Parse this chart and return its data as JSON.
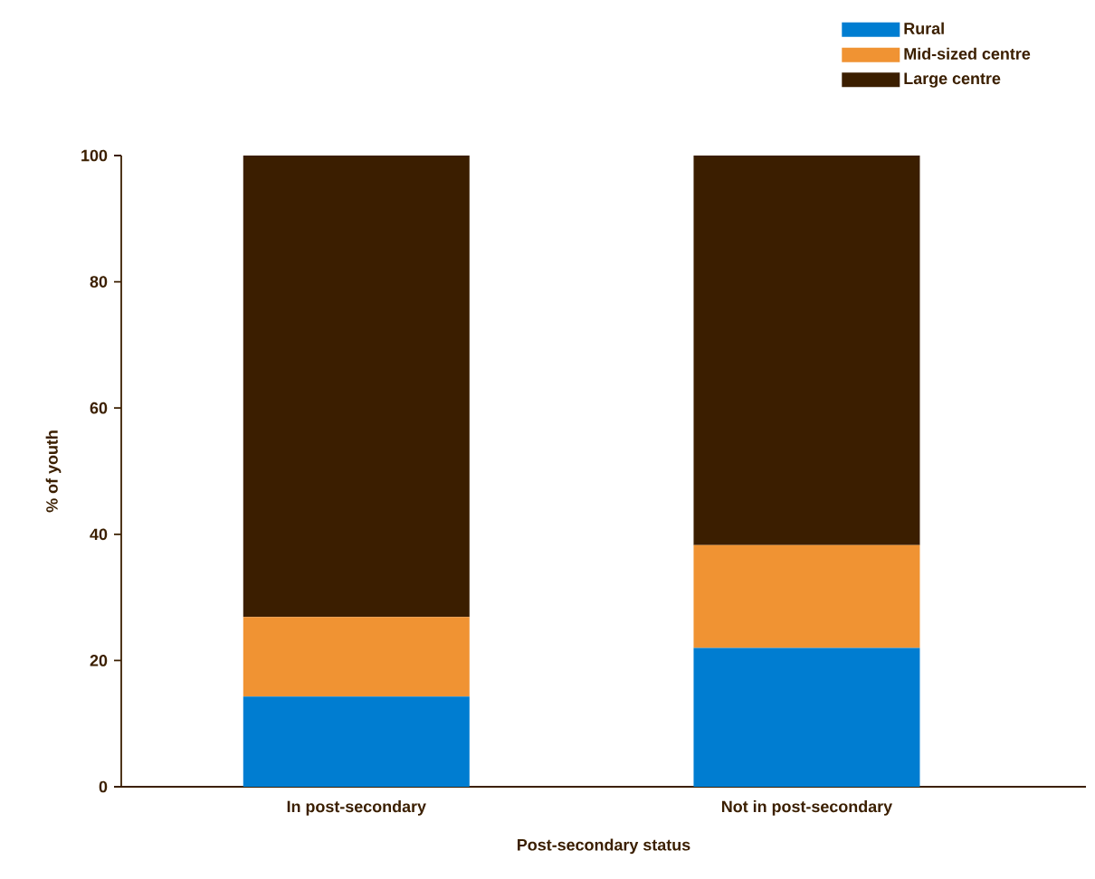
{
  "chart_data": {
    "type": "bar",
    "stacked": true,
    "xlabel": "Post-secondary status",
    "ylabel": "% of youth",
    "categories": [
      "In post-secondary",
      "Not in post-secondary"
    ],
    "series": [
      {
        "name": "Rural",
        "color": "#007dd1",
        "values": [
          14.3,
          22.0
        ]
      },
      {
        "name": "Mid-sized centre",
        "color": "#f09333",
        "values": [
          12.6,
          16.3
        ]
      },
      {
        "name": "Large centre",
        "color": "#3b1e00",
        "values": [
          73.1,
          61.7
        ]
      }
    ],
    "ylim": [
      0,
      100
    ],
    "yticks": [
      0,
      20,
      40,
      60,
      80,
      100
    ],
    "grid": false,
    "legend": "top right"
  }
}
